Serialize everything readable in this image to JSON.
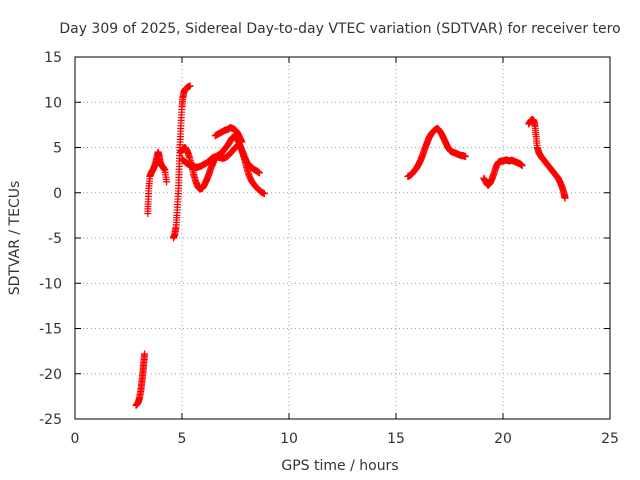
{
  "chart_data": {
    "type": "scatter",
    "title": "Day 309 of 2025, Sidereal Day-to-day VTEC variation (SDTVAR) for receiver tero",
    "xlabel": "GPS time / hours",
    "ylabel": "SDTVAR / TECUs",
    "xlim": [
      0,
      25
    ],
    "ylim": [
      -25,
      15
    ],
    "xticks": [
      0,
      5,
      10,
      15,
      20,
      25
    ],
    "yticks": [
      -25,
      -20,
      -15,
      -10,
      -5,
      0,
      5,
      10,
      15
    ],
    "grid": true,
    "marker": "plus",
    "color": "#ff0000",
    "series": [
      {
        "name": "SDTVAR",
        "segments": [
          [
            [
              2.85,
              -23.5
            ],
            [
              2.95,
              -23.2
            ],
            [
              3.02,
              -22.6
            ],
            [
              3.08,
              -21.8
            ],
            [
              3.12,
              -21.0
            ],
            [
              3.16,
              -20.2
            ],
            [
              3.19,
              -19.4
            ],
            [
              3.22,
              -18.6
            ],
            [
              3.25,
              -17.8
            ]
          ],
          [
            [
              3.4,
              -2.3
            ],
            [
              3.42,
              -1.0
            ],
            [
              3.45,
              0.5
            ],
            [
              3.5,
              1.8
            ],
            [
              3.58,
              2.3
            ],
            [
              3.66,
              2.6
            ],
            [
              3.74,
              3.1
            ],
            [
              3.82,
              3.8
            ],
            [
              3.88,
              4.5
            ],
            [
              3.93,
              4.1
            ],
            [
              3.98,
              3.4
            ],
            [
              4.05,
              3.0
            ],
            [
              4.12,
              2.8
            ],
            [
              4.2,
              2.5
            ],
            [
              4.28,
              1.2
            ]
          ],
          [
            [
              4.6,
              -5.0
            ],
            [
              4.66,
              -4.6
            ],
            [
              4.72,
              -3.8
            ],
            [
              4.76,
              -2.5
            ],
            [
              4.8,
              -1.0
            ],
            [
              4.84,
              0.5
            ],
            [
              4.86,
              2.0
            ],
            [
              4.88,
              3.5
            ],
            [
              4.9,
              5.0
            ],
            [
              4.93,
              6.5
            ],
            [
              4.96,
              8.0
            ],
            [
              5.0,
              9.5
            ],
            [
              5.04,
              10.5
            ],
            [
              5.1,
              11.2
            ],
            [
              5.18,
              11.5
            ],
            [
              5.28,
              11.7
            ],
            [
              5.38,
              11.8
            ]
          ],
          [
            [
              4.92,
              4.4
            ],
            [
              5.0,
              4.7
            ],
            [
              5.08,
              4.9
            ],
            [
              5.15,
              5.0
            ],
            [
              5.25,
              4.6
            ],
            [
              5.35,
              3.9
            ],
            [
              5.45,
              3.0
            ],
            [
              5.55,
              2.0
            ],
            [
              5.65,
              1.2
            ],
            [
              5.75,
              0.6
            ],
            [
              5.85,
              0.4
            ],
            [
              5.95,
              0.5
            ],
            [
              6.05,
              0.9
            ],
            [
              6.15,
              1.4
            ],
            [
              6.25,
              2.0
            ],
            [
              6.35,
              2.7
            ],
            [
              6.45,
              3.3
            ],
            [
              6.55,
              3.8
            ],
            [
              6.65,
              4.1
            ],
            [
              6.75,
              4.2
            ],
            [
              6.85,
              4.4
            ],
            [
              6.95,
              4.7
            ],
            [
              7.05,
              5.0
            ],
            [
              7.15,
              5.3
            ],
            [
              7.25,
              5.7
            ],
            [
              7.35,
              6.1
            ],
            [
              7.45,
              6.2
            ],
            [
              7.55,
              6.0
            ],
            [
              7.65,
              5.6
            ],
            [
              7.75,
              5.0
            ],
            [
              7.85,
              4.4
            ],
            [
              7.95,
              3.8
            ],
            [
              8.05,
              3.3
            ],
            [
              8.2,
              2.9
            ],
            [
              8.35,
              2.6
            ],
            [
              8.5,
              2.4
            ],
            [
              8.62,
              2.2
            ]
          ],
          [
            [
              5.0,
              3.7
            ],
            [
              5.1,
              3.5
            ],
            [
              5.25,
              3.2
            ],
            [
              5.4,
              3.0
            ],
            [
              5.55,
              2.9
            ],
            [
              5.7,
              2.8
            ],
            [
              5.85,
              2.9
            ],
            [
              6.0,
              3.1
            ],
            [
              6.15,
              3.3
            ],
            [
              6.3,
              3.6
            ],
            [
              6.45,
              3.9
            ],
            [
              6.6,
              4.0
            ],
            [
              6.75,
              3.9
            ],
            [
              6.9,
              3.8
            ],
            [
              7.05,
              3.9
            ],
            [
              7.2,
              4.2
            ],
            [
              7.35,
              4.6
            ],
            [
              7.5,
              5.0
            ],
            [
              7.62,
              5.3
            ],
            [
              7.72,
              5.1
            ],
            [
              7.82,
              4.5
            ],
            [
              7.92,
              3.7
            ],
            [
              8.02,
              2.8
            ],
            [
              8.12,
              2.0
            ],
            [
              8.25,
              1.3
            ],
            [
              8.4,
              0.8
            ],
            [
              8.55,
              0.4
            ],
            [
              8.7,
              0.1
            ],
            [
              8.85,
              -0.1
            ]
          ],
          [
            [
              6.55,
              6.3
            ],
            [
              6.7,
              6.5
            ],
            [
              6.85,
              6.7
            ],
            [
              7.0,
              6.9
            ],
            [
              7.15,
              7.0
            ],
            [
              7.25,
              7.2
            ],
            [
              7.38,
              7.1
            ],
            [
              7.5,
              6.9
            ],
            [
              7.6,
              6.6
            ],
            [
              7.7,
              6.1
            ],
            [
              7.8,
              5.6
            ]
          ],
          [
            [
              15.55,
              1.8
            ],
            [
              15.65,
              1.9
            ],
            [
              15.75,
              2.1
            ],
            [
              15.85,
              2.4
            ],
            [
              15.95,
              2.7
            ],
            [
              16.05,
              3.1
            ],
            [
              16.15,
              3.6
            ],
            [
              16.25,
              4.2
            ],
            [
              16.35,
              4.9
            ],
            [
              16.45,
              5.5
            ],
            [
              16.55,
              6.1
            ],
            [
              16.65,
              6.5
            ],
            [
              16.75,
              6.8
            ],
            [
              16.85,
              7.0
            ],
            [
              16.95,
              7.1
            ],
            [
              17.05,
              6.8
            ],
            [
              17.15,
              6.4
            ],
            [
              17.25,
              5.9
            ],
            [
              17.35,
              5.4
            ],
            [
              17.45,
              4.9
            ],
            [
              17.55,
              4.6
            ],
            [
              17.65,
              4.5
            ],
            [
              17.75,
              4.4
            ],
            [
              17.85,
              4.3
            ],
            [
              17.95,
              4.2
            ],
            [
              18.05,
              4.1
            ],
            [
              18.15,
              4.1
            ],
            [
              18.25,
              4.0
            ]
          ],
          [
            [
              19.1,
              1.6
            ],
            [
              19.2,
              1.2
            ],
            [
              19.3,
              0.8
            ],
            [
              19.4,
              1.1
            ],
            [
              19.5,
              1.6
            ],
            [
              19.6,
              2.3
            ],
            [
              19.7,
              3.0
            ],
            [
              19.8,
              3.4
            ],
            [
              19.9,
              3.5
            ],
            [
              20.0,
              3.5
            ],
            [
              20.1,
              3.6
            ],
            [
              20.2,
              3.6
            ],
            [
              20.3,
              3.5
            ],
            [
              20.4,
              3.6
            ],
            [
              20.5,
              3.5
            ],
            [
              20.6,
              3.4
            ],
            [
              20.7,
              3.3
            ],
            [
              20.8,
              3.2
            ],
            [
              20.9,
              3.0
            ]
          ],
          [
            [
              21.2,
              7.6
            ],
            [
              21.28,
              7.9
            ],
            [
              21.36,
              8.1
            ],
            [
              21.44,
              8.0
            ],
            [
              21.5,
              7.3
            ],
            [
              21.55,
              6.2
            ],
            [
              21.6,
              5.0
            ],
            [
              21.68,
              4.4
            ],
            [
              21.78,
              4.0
            ],
            [
              21.88,
              3.7
            ],
            [
              21.98,
              3.4
            ],
            [
              22.08,
              3.1
            ],
            [
              22.18,
              2.8
            ],
            [
              22.28,
              2.5
            ],
            [
              22.38,
              2.2
            ],
            [
              22.48,
              1.9
            ],
            [
              22.58,
              1.6
            ],
            [
              22.68,
              1.1
            ],
            [
              22.78,
              0.5
            ],
            [
              22.86,
              -0.2
            ],
            [
              22.9,
              -0.6
            ]
          ]
        ]
      }
    ]
  }
}
